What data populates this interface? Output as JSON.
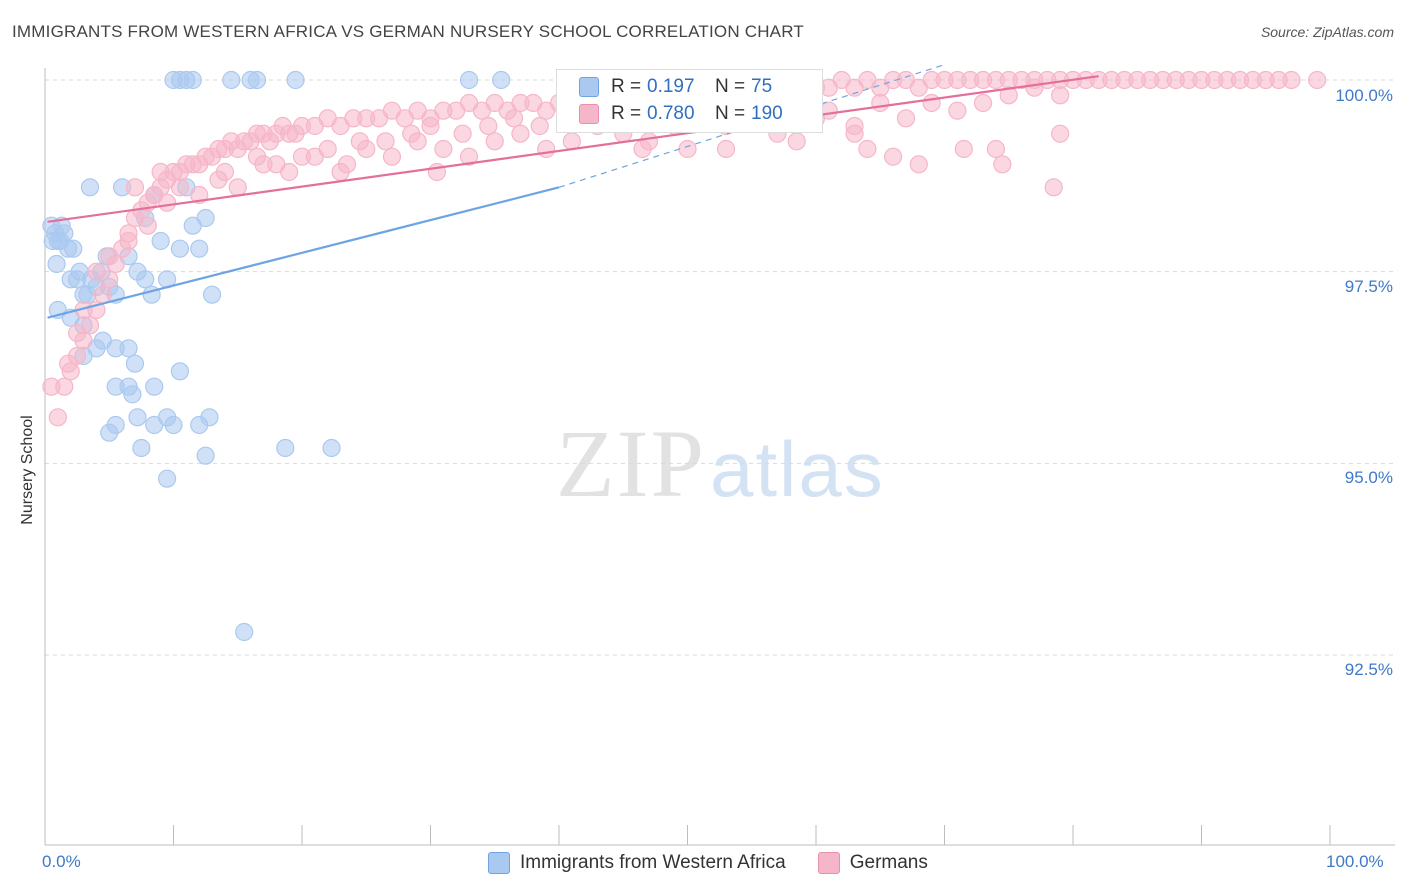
{
  "header": {
    "title": "IMMIGRANTS FROM WESTERN AFRICA VS GERMAN NURSERY SCHOOL CORRELATION CHART",
    "source": "Source: ZipAtlas.com"
  },
  "watermark": {
    "zip": "ZIP",
    "atlas": "atlas"
  },
  "legend_top": {
    "rows": [
      {
        "r_label": "R =",
        "r_value": "0.197",
        "n_label": "N =",
        "n_value": "75",
        "color": "#aac9f0"
      },
      {
        "r_label": "R =",
        "r_value": "0.780",
        "n_label": "N =",
        "n_value": "190",
        "color": "#f6b6c9"
      }
    ]
  },
  "legend_bottom": [
    {
      "label": "Immigrants from Western Africa",
      "color": "#aac9f0"
    },
    {
      "label": "Germans",
      "color": "#f6b6c9"
    }
  ],
  "chart_data": {
    "type": "scatter",
    "title": "IMMIGRANTS FROM WESTERN AFRICA VS GERMAN NURSERY SCHOOL CORRELATION CHART",
    "xlabel": "",
    "ylabel": "Nursery School",
    "xlim": [
      0,
      100
    ],
    "ylim": [
      90.0,
      100.3
    ],
    "x_tick_labels": [
      "0.0%",
      "100.0%"
    ],
    "y_ticks": [
      92.5,
      95.0,
      97.5,
      100.0
    ],
    "y_tick_labels": [
      "92.5%",
      "95.0%",
      "97.5%",
      "100.0%"
    ],
    "grid": true,
    "series": [
      {
        "name": "Immigrants from Western Africa",
        "color": "#6fa4e3",
        "fill": "#aac9f0",
        "R": 0.197,
        "N": 75,
        "trend": {
          "x0": 0.2,
          "y0": 96.9,
          "x1": 40.0,
          "y1": 98.6,
          "dash_to_x": 70.0,
          "dash_to_y": 100.2
        },
        "points": [
          [
            0.5,
            98.1
          ],
          [
            0.6,
            97.9
          ],
          [
            0.8,
            98.0
          ],
          [
            1.0,
            97.9
          ],
          [
            1.2,
            97.9
          ],
          [
            1.5,
            98.0
          ],
          [
            1.8,
            97.8
          ],
          [
            0.9,
            97.6
          ],
          [
            2.0,
            97.4
          ],
          [
            2.5,
            97.4
          ],
          [
            3.0,
            97.2
          ],
          [
            3.3,
            97.2
          ],
          [
            3.6,
            97.4
          ],
          [
            4.0,
            97.3
          ],
          [
            4.4,
            97.5
          ],
          [
            5.0,
            97.3
          ],
          [
            5.5,
            97.2
          ],
          [
            4.8,
            97.7
          ],
          [
            6.5,
            97.7
          ],
          [
            7.2,
            97.5
          ],
          [
            7.8,
            97.4
          ],
          [
            8.3,
            97.2
          ],
          [
            9.5,
            97.4
          ],
          [
            10.5,
            97.8
          ],
          [
            11.5,
            98.1
          ],
          [
            12.0,
            97.8
          ],
          [
            12.5,
            98.2
          ],
          [
            11.0,
            98.6
          ],
          [
            7.8,
            98.2
          ],
          [
            9.0,
            97.9
          ],
          [
            13.0,
            97.2
          ],
          [
            8.5,
            98.5
          ],
          [
            1.0,
            97.0
          ],
          [
            2.0,
            96.9
          ],
          [
            3.0,
            96.8
          ],
          [
            4.0,
            96.5
          ],
          [
            4.5,
            96.6
          ],
          [
            5.5,
            96.5
          ],
          [
            6.5,
            96.5
          ],
          [
            3.0,
            96.4
          ],
          [
            5.5,
            96.0
          ],
          [
            6.5,
            96.0
          ],
          [
            6.8,
            95.9
          ],
          [
            7.0,
            96.3
          ],
          [
            8.5,
            96.0
          ],
          [
            10.5,
            96.2
          ],
          [
            7.2,
            95.6
          ],
          [
            8.5,
            95.5
          ],
          [
            9.5,
            95.6
          ],
          [
            10.0,
            95.5
          ],
          [
            12.0,
            95.5
          ],
          [
            12.8,
            95.6
          ],
          [
            5.0,
            95.4
          ],
          [
            5.5,
            95.5
          ],
          [
            7.5,
            95.2
          ],
          [
            12.5,
            95.1
          ],
          [
            18.7,
            95.2
          ],
          [
            22.3,
            95.2
          ],
          [
            9.5,
            94.8
          ],
          [
            15.5,
            92.8
          ],
          [
            10.0,
            100.0
          ],
          [
            10.5,
            100.0
          ],
          [
            11.0,
            100.0
          ],
          [
            11.5,
            100.0
          ],
          [
            14.5,
            100.0
          ],
          [
            16.0,
            100.0
          ],
          [
            16.5,
            100.0
          ],
          [
            19.5,
            100.0
          ],
          [
            33.0,
            100.0
          ],
          [
            35.5,
            100.0
          ],
          [
            3.5,
            98.6
          ],
          [
            6.0,
            98.6
          ],
          [
            1.3,
            98.1
          ],
          [
            2.2,
            97.8
          ],
          [
            2.7,
            97.5
          ]
        ]
      },
      {
        "name": "Germans",
        "color": "#e36f9a",
        "fill": "#f6b6c9",
        "R": 0.78,
        "N": 190,
        "trend": {
          "x0": 0.2,
          "y0": 98.15,
          "x1": 82.0,
          "y1": 100.05
        },
        "points": [
          [
            0.5,
            96.0
          ],
          [
            1.0,
            95.6
          ],
          [
            1.5,
            96.0
          ],
          [
            2.0,
            96.2
          ],
          [
            2.5,
            96.4
          ],
          [
            3.0,
            96.6
          ],
          [
            3.5,
            96.8
          ],
          [
            4.0,
            97.0
          ],
          [
            4.5,
            97.2
          ],
          [
            5.0,
            97.4
          ],
          [
            5.5,
            97.6
          ],
          [
            6.0,
            97.8
          ],
          [
            6.5,
            98.0
          ],
          [
            7.0,
            98.2
          ],
          [
            7.5,
            98.3
          ],
          [
            8.0,
            98.4
          ],
          [
            8.5,
            98.5
          ],
          [
            9.0,
            98.6
          ],
          [
            9.5,
            98.7
          ],
          [
            10.0,
            98.8
          ],
          [
            10.5,
            98.8
          ],
          [
            11.0,
            98.9
          ],
          [
            11.5,
            98.9
          ],
          [
            12.0,
            98.9
          ],
          [
            12.5,
            99.0
          ],
          [
            13.0,
            99.0
          ],
          [
            13.5,
            99.1
          ],
          [
            14.0,
            99.1
          ],
          [
            14.5,
            99.2
          ],
          [
            15.0,
            99.1
          ],
          [
            15.5,
            99.2
          ],
          [
            16.0,
            99.2
          ],
          [
            16.5,
            99.3
          ],
          [
            17.0,
            99.3
          ],
          [
            17.5,
            99.2
          ],
          [
            18.0,
            99.3
          ],
          [
            18.5,
            99.4
          ],
          [
            19.0,
            99.3
          ],
          [
            19.5,
            99.3
          ],
          [
            20.0,
            99.4
          ],
          [
            21.0,
            99.4
          ],
          [
            22.0,
            99.5
          ],
          [
            23.0,
            99.4
          ],
          [
            24.0,
            99.5
          ],
          [
            25.0,
            99.5
          ],
          [
            26.0,
            99.5
          ],
          [
            27.0,
            99.6
          ],
          [
            28.0,
            99.5
          ],
          [
            29.0,
            99.6
          ],
          [
            30.0,
            99.5
          ],
          [
            31.0,
            99.6
          ],
          [
            32.0,
            99.6
          ],
          [
            33.0,
            99.7
          ],
          [
            34.0,
            99.6
          ],
          [
            35.0,
            99.7
          ],
          [
            36.0,
            99.6
          ],
          [
            37.0,
            99.7
          ],
          [
            38.0,
            99.7
          ],
          [
            39.0,
            99.6
          ],
          [
            40.0,
            99.7
          ],
          [
            41.0,
            99.8
          ],
          [
            42.0,
            99.7
          ],
          [
            43.0,
            99.8
          ],
          [
            44.0,
            99.7
          ],
          [
            45.0,
            99.8
          ],
          [
            46.0,
            99.8
          ],
          [
            47.0,
            99.7
          ],
          [
            48.0,
            99.8
          ],
          [
            49.0,
            99.8
          ],
          [
            50.0,
            99.9
          ],
          [
            51.0,
            99.8
          ],
          [
            52.0,
            99.9
          ],
          [
            53.0,
            99.8
          ],
          [
            54.0,
            99.9
          ],
          [
            55.0,
            99.8
          ],
          [
            56.0,
            99.9
          ],
          [
            57.0,
            99.9
          ],
          [
            58.0,
            99.9
          ],
          [
            59.0,
            99.8
          ],
          [
            60.0,
            99.9
          ],
          [
            61.0,
            99.9
          ],
          [
            62.0,
            100.0
          ],
          [
            63.0,
            99.9
          ],
          [
            64.0,
            100.0
          ],
          [
            65.0,
            99.9
          ],
          [
            66.0,
            100.0
          ],
          [
            67.0,
            100.0
          ],
          [
            68.0,
            99.9
          ],
          [
            69.0,
            100.0
          ],
          [
            70.0,
            100.0
          ],
          [
            71.0,
            100.0
          ],
          [
            72.0,
            100.0
          ],
          [
            73.0,
            100.0
          ],
          [
            74.0,
            100.0
          ],
          [
            75.0,
            100.0
          ],
          [
            76.0,
            100.0
          ],
          [
            77.0,
            100.0
          ],
          [
            78.0,
            100.0
          ],
          [
            79.0,
            100.0
          ],
          [
            80.0,
            100.0
          ],
          [
            81.0,
            100.0
          ],
          [
            82.0,
            100.0
          ],
          [
            83.0,
            100.0
          ],
          [
            84.0,
            100.0
          ],
          [
            85.0,
            100.0
          ],
          [
            86.0,
            100.0
          ],
          [
            87.0,
            100.0
          ],
          [
            88.0,
            100.0
          ],
          [
            89.0,
            100.0
          ],
          [
            90.0,
            100.0
          ],
          [
            91.0,
            100.0
          ],
          [
            92.0,
            100.0
          ],
          [
            93.0,
            100.0
          ],
          [
            94.0,
            100.0
          ],
          [
            95.0,
            100.0
          ],
          [
            96.0,
            100.0
          ],
          [
            97.0,
            100.0
          ],
          [
            99.0,
            100.0
          ],
          [
            12.0,
            98.5
          ],
          [
            13.5,
            98.7
          ],
          [
            15.0,
            98.6
          ],
          [
            17.0,
            98.9
          ],
          [
            19.0,
            98.8
          ],
          [
            21.0,
            99.0
          ],
          [
            23.0,
            98.8
          ],
          [
            25.0,
            99.1
          ],
          [
            27.0,
            99.0
          ],
          [
            29.0,
            99.2
          ],
          [
            31.0,
            99.1
          ],
          [
            33.0,
            99.0
          ],
          [
            35.0,
            99.2
          ],
          [
            37.0,
            99.3
          ],
          [
            39.0,
            99.1
          ],
          [
            41.0,
            99.2
          ],
          [
            43.0,
            99.4
          ],
          [
            45.0,
            99.3
          ],
          [
            47.0,
            99.2
          ],
          [
            49.0,
            99.4
          ],
          [
            51.0,
            99.5
          ],
          [
            53.0,
            99.4
          ],
          [
            55.0,
            99.6
          ],
          [
            57.0,
            99.3
          ],
          [
            59.0,
            99.5
          ],
          [
            61.0,
            99.6
          ],
          [
            63.0,
            99.4
          ],
          [
            65.0,
            99.7
          ],
          [
            67.0,
            99.5
          ],
          [
            69.0,
            99.7
          ],
          [
            71.0,
            99.6
          ],
          [
            73.0,
            99.7
          ],
          [
            75.0,
            99.8
          ],
          [
            77.0,
            99.9
          ],
          [
            79.0,
            99.8
          ],
          [
            46.5,
            99.1
          ],
          [
            50.0,
            99.1
          ],
          [
            53.0,
            99.1
          ],
          [
            58.5,
            99.2
          ],
          [
            63.0,
            99.3
          ],
          [
            64.0,
            99.1
          ],
          [
            66.0,
            99.0
          ],
          [
            68.0,
            98.9
          ],
          [
            71.5,
            99.1
          ],
          [
            74.0,
            99.1
          ],
          [
            74.5,
            98.9
          ],
          [
            79.0,
            99.3
          ],
          [
            78.5,
            98.6
          ],
          [
            60.0,
            99.5
          ],
          [
            30.5,
            98.8
          ],
          [
            23.5,
            98.9
          ],
          [
            9.0,
            98.8
          ],
          [
            9.5,
            98.4
          ],
          [
            7.0,
            98.6
          ],
          [
            6.5,
            97.9
          ],
          [
            4.0,
            97.5
          ],
          [
            5.0,
            97.7
          ],
          [
            3.0,
            97.0
          ],
          [
            2.5,
            96.7
          ],
          [
            1.8,
            96.3
          ],
          [
            8.0,
            98.1
          ],
          [
            10.5,
            98.6
          ],
          [
            14.0,
            98.8
          ],
          [
            16.5,
            99.0
          ],
          [
            18.0,
            98.9
          ],
          [
            20.0,
            99.0
          ],
          [
            22.0,
            99.1
          ],
          [
            24.5,
            99.2
          ],
          [
            26.5,
            99.2
          ],
          [
            28.5,
            99.3
          ],
          [
            30.0,
            99.4
          ],
          [
            32.5,
            99.3
          ],
          [
            34.5,
            99.4
          ],
          [
            36.5,
            99.5
          ],
          [
            38.5,
            99.4
          ],
          [
            40.5,
            99.5
          ],
          [
            42.5,
            99.6
          ],
          [
            44.5,
            99.6
          ]
        ]
      }
    ]
  },
  "axes": {
    "ylabel": "Nursery School",
    "x_left": "0.0%",
    "x_right": "100.0%",
    "y_ticks": [
      "100.0%",
      "97.5%",
      "95.0%",
      "92.5%"
    ]
  }
}
